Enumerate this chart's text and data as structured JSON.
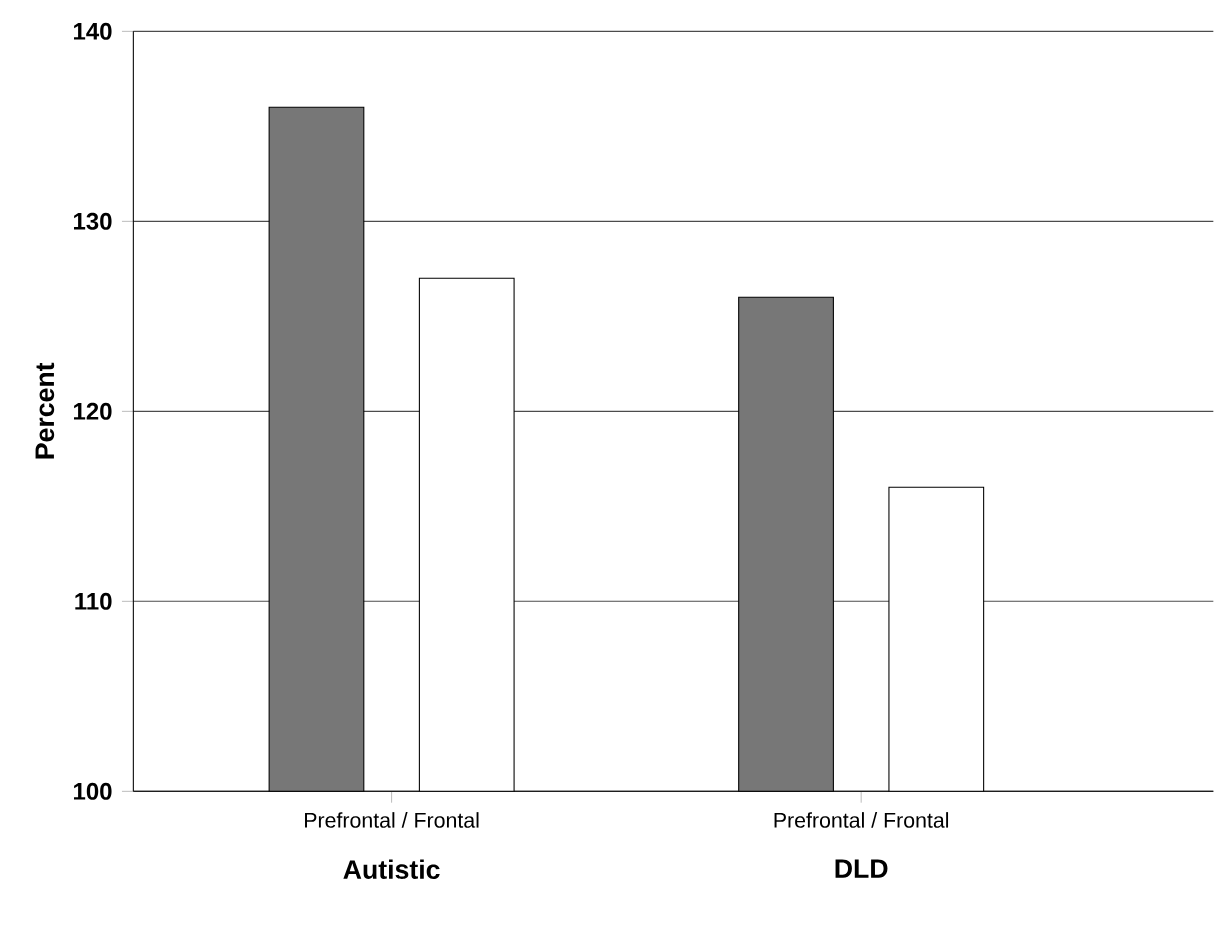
{
  "chart_data": {
    "type": "bar",
    "ylabel": "Percent",
    "categories": [
      "Autistic",
      "DLD"
    ],
    "series": [
      {
        "color": "#777777",
        "values": [
          136,
          126
        ]
      },
      {
        "color": "#ffffff",
        "values": [
          127,
          116
        ]
      }
    ],
    "ylim": [
      100,
      140
    ],
    "yticks": [
      100,
      110,
      120,
      130,
      140
    ],
    "grid": "y",
    "annotations": [
      "Prefrontal  /  Frontal",
      "Prefrontal  /  Frontal"
    ]
  }
}
